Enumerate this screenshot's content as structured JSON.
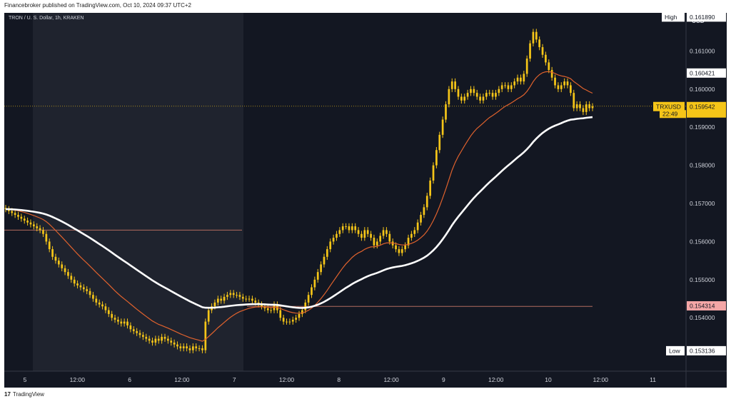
{
  "header": {
    "publisher_line": "Financebroker published on TradingView.com, Oct 10, 2024 09:37 UTC+2"
  },
  "footer": {
    "brand": "TradingView",
    "logo_text": "17"
  },
  "chart_title": "TRON / U. S. Dollar, 1h, KRAKEN",
  "currency": "USD",
  "colors": {
    "background": "#131722",
    "session_shade": "#2a2e39",
    "candle": "#f5c518",
    "ema_short": "#e0622d",
    "ema_long": "#ffffff",
    "level_line": "#b26b5e",
    "grid": "#2a2e39",
    "label_bg": "#ffffff",
    "price_label_bg": "#f5c518",
    "support_label_bg": "#f4a6a6"
  },
  "chart_data": {
    "type": "line",
    "x_axis_ticks": [
      "5",
      "12:00",
      "6",
      "12:00",
      "7",
      "12:00",
      "8",
      "12:00",
      "9",
      "12:00",
      "10",
      "12:00",
      "11"
    ],
    "y_axis_ticks": [
      "0.155000",
      "0.156000",
      "0.157000",
      "0.158000",
      "0.159000",
      "0.160000",
      "0.161000"
    ],
    "ylim": [
      0.1526,
      0.162
    ],
    "grid": false,
    "price_labels": [
      {
        "tag": "High",
        "value": "0.161890"
      },
      {
        "tag": "",
        "value": "0.160421"
      },
      {
        "tag": "TRXUSD",
        "value": "0.159542",
        "sub": "22:49"
      },
      {
        "tag": "",
        "value": "0.154314"
      },
      {
        "tag": "",
        "value": "0.154000"
      },
      {
        "tag": "Low",
        "value": "0.153136"
      }
    ],
    "horizontal_levels": [
      0.1563,
      0.1543
    ],
    "close_series": [
      0.15685,
      0.1568,
      0.15675,
      0.1567,
      0.15665,
      0.1566,
      0.15655,
      0.1565,
      0.15645,
      0.1564,
      0.15635,
      0.1563,
      0.1562,
      0.156,
      0.1558,
      0.1556,
      0.1555,
      0.1554,
      0.1553,
      0.1552,
      0.1551,
      0.155,
      0.1549,
      0.15485,
      0.1548,
      0.15475,
      0.1547,
      0.1546,
      0.1545,
      0.1544,
      0.15435,
      0.1543,
      0.1542,
      0.1541,
      0.154,
      0.15395,
      0.1539,
      0.15385,
      0.1539,
      0.1538,
      0.1537,
      0.15365,
      0.1536,
      0.15355,
      0.1535,
      0.15345,
      0.1534,
      0.15335,
      0.15345,
      0.1534,
      0.1535,
      0.15345,
      0.1534,
      0.15335,
      0.1533,
      0.15325,
      0.1532,
      0.15325,
      0.1532,
      0.15315,
      0.15325,
      0.1532,
      0.1532,
      0.15315,
      0.1539,
      0.1542,
      0.1543,
      0.1544,
      0.1545,
      0.15445,
      0.15455,
      0.1546,
      0.15465,
      0.1546,
      0.1546,
      0.15455,
      0.1545,
      0.1545,
      0.1545,
      0.15445,
      0.1544,
      0.15435,
      0.1543,
      0.15425,
      0.1542,
      0.1542,
      0.15435,
      0.1542,
      0.154,
      0.1539,
      0.1539,
      0.1539,
      0.15395,
      0.154,
      0.1541,
      0.1542,
      0.1544,
      0.1546,
      0.1548,
      0.155,
      0.1552,
      0.1554,
      0.1556,
      0.1558,
      0.156,
      0.1561,
      0.1562,
      0.1563,
      0.1564,
      0.1564,
      0.1563,
      0.1564,
      0.1563,
      0.1562,
      0.1561,
      0.1563,
      0.1562,
      0.1561,
      0.1559,
      0.156,
      0.15615,
      0.1563,
      0.1562,
      0.156,
      0.1559,
      0.1558,
      0.1557,
      0.1558,
      0.1559,
      0.1561,
      0.1562,
      0.1563,
      0.1565,
      0.1567,
      0.1569,
      0.1572,
      0.1576,
      0.158,
      0.1584,
      0.1588,
      0.1592,
      0.1596,
      0.16,
      0.1602,
      0.16,
      0.1598,
      0.1597,
      0.1598,
      0.1599,
      0.16,
      0.1599,
      0.1598,
      0.1597,
      0.1598,
      0.1599,
      0.1599,
      0.1598,
      0.1599,
      0.16,
      0.1601,
      0.1601,
      0.16,
      0.1601,
      0.1602,
      0.1603,
      0.1602,
      0.1604,
      0.1608,
      0.1612,
      0.1615,
      0.1613,
      0.1611,
      0.1609,
      0.1607,
      0.1605,
      0.1603,
      0.1601,
      0.16,
      0.1601,
      0.1602,
      0.1601,
      0.1599,
      0.1595,
      0.1596,
      0.1595,
      0.1594,
      0.1596,
      0.1595,
      0.15955
    ]
  }
}
